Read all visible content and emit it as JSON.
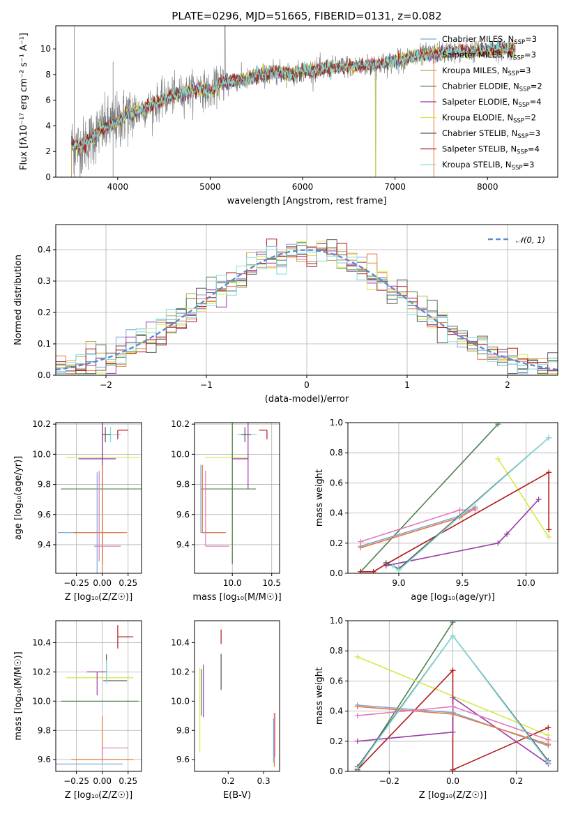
{
  "figure": {
    "title": "PLATE=0296, MJD=51665, FIBERID=0131, z=0.082"
  },
  "colors": {
    "Chabrier MILES": "#7aa6d8",
    "Salpeter MILES": "#e8783a",
    "Kroupa MILES": "#c8a050",
    "Chabrier ELODIE": "#4f7f4f",
    "Salpeter ELODIE": "#9a3aa8",
    "Kroupa ELODIE": "#d6e84a",
    "Chabrier STELIB": "#5a5a5a",
    "Salpeter STELIB": "#b01818",
    "Kroupa STELIB": "#82dede",
    "data": "#808080",
    "normal": "#5b8bd0",
    "pink": "#e07ab8"
  },
  "chart_data": [
    {
      "id": "spectrum",
      "type": "line",
      "xlabel": "wavelength [Angstrom, rest frame]",
      "ylabel": "Flux [fλ10⁻¹⁷ erg cm⁻² s⁻¹ A⁻¹]",
      "xlim": [
        3330,
        8760
      ],
      "ylim": [
        0,
        11.8
      ],
      "xticks": [
        4000,
        5000,
        6000,
        7000,
        8000
      ],
      "yticks": [
        0,
        2,
        4,
        6,
        8,
        10
      ],
      "grid": false,
      "legend_position": "top-right",
      "series": [
        {
          "name": "Chabrier MILES, N_SSP=3",
          "legend": "Chabrier MILES, N",
          "sub": "SSP",
          "sup": "=3"
        },
        {
          "name": "Salpeter MILES, N_SSP=3",
          "legend": "Salpeter MILES, N",
          "sub": "SSP",
          "sup": "=3"
        },
        {
          "name": "Kroupa MILES, N_SSP=3",
          "legend": "Kroupa MILES, N",
          "sub": "SSP",
          "sup": "=3"
        },
        {
          "name": "Chabrier ELODIE, N_SSP=2",
          "legend": "Chabrier ELODIE, N",
          "sub": "SSP",
          "sup": "=2"
        },
        {
          "name": "Salpeter ELODIE, N_SSP=4",
          "legend": "Salpeter ELODIE, N",
          "sub": "SSP",
          "sup": "=4"
        },
        {
          "name": "Kroupa ELODIE, N_SSP=2",
          "legend": "Kroupa ELODIE, N",
          "sub": "SSP",
          "sup": "=2"
        },
        {
          "name": "Chabrier STELIB, N_SSP=3",
          "legend": "Chabrier STELIB, N",
          "sub": "SSP",
          "sup": "=3"
        },
        {
          "name": "Salpeter STELIB, N_SSP=4",
          "legend": "Salpeter STELIB, N",
          "sub": "SSP",
          "sup": "=4"
        },
        {
          "name": "Kroupa STELIB, N_SSP=3",
          "legend": "Kroupa STELIB, N",
          "sub": "SSP",
          "sup": "=3"
        }
      ],
      "model_anchor_x": [
        3500,
        3600,
        3700,
        3800,
        3900,
        4000,
        4100,
        4200,
        4300,
        4400,
        4500,
        4600,
        4700,
        4800,
        4900,
        5000,
        5100,
        5200,
        5300,
        5400,
        5500,
        5600,
        5700,
        5800,
        5900,
        6000,
        6200,
        6400,
        6600,
        6800,
        7000,
        7200,
        7400,
        7600,
        7800,
        8000,
        8200,
        8300
      ],
      "model_anchor_y": [
        2.6,
        2.3,
        2.9,
        3.6,
        4.0,
        4.3,
        4.9,
        5.0,
        5.4,
        5.7,
        6.1,
        6.4,
        6.5,
        6.8,
        7.0,
        6.6,
        7.3,
        7.4,
        7.6,
        7.6,
        7.9,
        8.0,
        8.2,
        8.2,
        8.0,
        8.3,
        8.4,
        8.6,
        8.6,
        8.8,
        9.0,
        9.4,
        9.6,
        9.8,
        9.8,
        9.9,
        10.0,
        9.9
      ]
    },
    {
      "id": "residuals",
      "type": "step",
      "xlabel": "(data-model)/error",
      "ylabel": "Normed distribution",
      "xlim": [
        -2.5,
        2.5
      ],
      "ylim": [
        0,
        0.48
      ],
      "xticks": [
        -2,
        -1,
        0,
        1,
        2
      ],
      "xticklabels": [
        "−2",
        "−1",
        "0",
        "1",
        "2"
      ],
      "yticks": [
        0.0,
        0.1,
        0.2,
        0.3,
        0.4
      ],
      "yticklabels": [
        "0.0",
        "0.1",
        "0.2",
        "0.3",
        "0.4"
      ],
      "grid": true,
      "legend": "𝒩(0, 1)",
      "legend_position": "top-right",
      "bin_width": 0.1,
      "bin_start": -2.5
    },
    {
      "id": "age_vs_Z",
      "type": "errorbar",
      "xlabel": "Z [log₁₀(Z/Z☉)]",
      "ylabel": "age  [log₁₀(age/yr)]",
      "xlim": [
        -0.45,
        0.38
      ],
      "ylim": [
        9.21,
        10.21
      ],
      "xticks": [
        -0.25,
        0.0,
        0.25
      ],
      "xticklabels": [
        "−0.25",
        "0.00",
        "0.25"
      ],
      "yticks": [
        9.4,
        9.6,
        9.8,
        10.0,
        10.2
      ],
      "yticklabels": [
        "9.4",
        "9.6",
        "9.8",
        "10.0",
        "10.2"
      ],
      "grid": true,
      "points": [
        {
          "series": "Kroupa ELODIE",
          "x": 0.0,
          "xerr": [
            0.35,
            0.37
          ],
          "y": 9.98,
          "yerr": [
            0.7,
            0.3
          ]
        },
        {
          "series": "Chabrier ELODIE",
          "x": 0.0,
          "xerr": [
            0.4,
            0.38
          ],
          "y": 9.77,
          "yerr": [
            0.5,
            0.5
          ]
        },
        {
          "series": "Salpeter ELODIE",
          "x": 0.0,
          "xerr": [
            0.23,
            0.13
          ],
          "y": 9.97,
          "yerr": [
            0.2,
            0.25
          ]
        },
        {
          "series": "Kroupa STELIB",
          "x": 0.08,
          "xerr": [
            0.08,
            0.1
          ],
          "y": 10.13,
          "yerr": [
            0.05,
            0.05
          ]
        },
        {
          "series": "Chabrier STELIB",
          "x": 0.03,
          "xerr": [
            0.03,
            0.05
          ],
          "y": 10.13,
          "yerr": [
            0.05,
            0.05
          ]
        },
        {
          "series": "Salpeter STELIB",
          "x": 0.15,
          "xerr": [
            0.0,
            0.1
          ],
          "y": 10.16,
          "yerr": [
            0.06,
            0.0
          ]
        },
        {
          "series": "Chabrier MILES",
          "x": -0.05,
          "xerr": [
            0.38,
            0.25
          ],
          "y": 9.48,
          "yerr": [
            0.3,
            0.4
          ]
        },
        {
          "series": "Salpeter MILES",
          "x": 0.0,
          "xerr": [
            0.28,
            0.24
          ],
          "y": 9.48,
          "yerr": [
            0.3,
            0.45
          ]
        },
        {
          "series": "pink",
          "x": -0.03,
          "xerr": [
            0.05,
            0.21
          ],
          "y": 9.39,
          "yerr": [
            0.1,
            0.5
          ]
        }
      ]
    },
    {
      "id": "age_vs_mass",
      "type": "errorbar",
      "xlabel": "mass [log₁₀(M/M☉)]",
      "ylabel": "",
      "xlim": [
        9.52,
        10.6
      ],
      "ylim": [
        9.21,
        10.21
      ],
      "xticks": [
        10.0,
        10.5
      ],
      "xticklabels": [
        "10.0",
        "10.5"
      ],
      "yticks": [
        9.4,
        9.6,
        9.8,
        10.0,
        10.2
      ],
      "yticklabels": [
        "9.4",
        "9.6",
        "9.8",
        "10.0",
        "10.2"
      ],
      "grid": true,
      "points": [
        {
          "series": "Kroupa ELODIE",
          "x": 10.0,
          "xerr": [
            0.35,
            0.22
          ],
          "y": 9.98,
          "yerr": [
            0.7,
            0.3
          ]
        },
        {
          "series": "Chabrier ELODIE",
          "x": 10.0,
          "xerr": [
            0.4,
            0.3
          ],
          "y": 9.77,
          "yerr": [
            0.5,
            0.5
          ]
        },
        {
          "series": "Salpeter ELODIE",
          "x": 10.2,
          "xerr": [
            0.2,
            0.0
          ],
          "y": 9.97,
          "yerr": [
            0.2,
            0.25
          ]
        },
        {
          "series": "Kroupa STELIB",
          "x": 10.16,
          "xerr": [
            0.1,
            0.15
          ],
          "y": 10.13,
          "yerr": [
            0.05,
            0.05
          ]
        },
        {
          "series": "Chabrier STELIB",
          "x": 10.16,
          "xerr": [
            0.05,
            0.08
          ],
          "y": 10.13,
          "yerr": [
            0.05,
            0.05
          ]
        },
        {
          "series": "Salpeter STELIB",
          "x": 10.44,
          "xerr": [
            0.1,
            0.0
          ],
          "y": 10.16,
          "yerr": [
            0.06,
            0.0
          ]
        },
        {
          "series": "Chabrier MILES",
          "x": 9.6,
          "xerr": [
            0.0,
            0.3
          ],
          "y": 9.48,
          "yerr": [
            0.0,
            0.45
          ]
        },
        {
          "series": "Salpeter MILES",
          "x": 9.62,
          "xerr": [
            0.0,
            0.3
          ],
          "y": 9.48,
          "yerr": [
            0.0,
            0.45
          ]
        },
        {
          "series": "pink",
          "x": 9.66,
          "xerr": [
            0.0,
            0.3
          ],
          "y": 9.39,
          "yerr": [
            0.0,
            0.5
          ]
        }
      ]
    },
    {
      "id": "massweight_vs_age",
      "type": "line",
      "xlabel": "age  [log₁₀(age/yr)]",
      "ylabel": "mass weight",
      "xlim": [
        8.6,
        10.25
      ],
      "ylim": [
        0.0,
        1.0
      ],
      "xticks": [
        9.0,
        9.5,
        10.0
      ],
      "xticklabels": [
        "9.0",
        "9.5",
        "10.0"
      ],
      "yticks": [
        0.0,
        0.2,
        0.4,
        0.6,
        0.8,
        1.0
      ],
      "yticklabels": [
        "0.0",
        "0.2",
        "0.4",
        "0.6",
        "0.8",
        "1.0"
      ],
      "grid": true,
      "series": [
        {
          "series": "Chabrier ELODIE",
          "x": [
            8.7,
            9.78
          ],
          "y": [
            0.01,
            0.99
          ]
        },
        {
          "series": "Kroupa ELODIE",
          "x": [
            9.78,
            10.18
          ],
          "y": [
            0.76,
            0.24
          ]
        },
        {
          "series": "Salpeter STELIB",
          "x": [
            8.7,
            8.8,
            8.9,
            10.18,
            10.18
          ],
          "y": [
            0.01,
            0.01,
            0.06,
            0.67,
            0.29
          ]
        },
        {
          "series": "Salpeter ELODIE",
          "x": [
            8.9,
            9.78,
            9.85,
            10.1
          ],
          "y": [
            0.05,
            0.2,
            0.26,
            0.49
          ]
        },
        {
          "series": "Chabrier MILES",
          "x": [
            8.7,
            9.48,
            9.6
          ],
          "y": [
            0.18,
            0.38,
            0.44
          ]
        },
        {
          "series": "Salpeter MILES",
          "x": [
            8.7,
            9.48,
            9.6
          ],
          "y": [
            0.17,
            0.37,
            0.43
          ]
        },
        {
          "series": "pink",
          "x": [
            8.7,
            9.48,
            9.6
          ],
          "y": [
            0.21,
            0.42,
            0.42
          ]
        },
        {
          "series": "Chabrier STELIB",
          "x": [
            8.9,
            9.0,
            10.18
          ],
          "y": [
            0.07,
            0.03,
            0.9
          ]
        },
        {
          "series": "Kroupa STELIB",
          "x": [
            8.95,
            9.0,
            10.18
          ],
          "y": [
            0.05,
            0.02,
            0.9
          ]
        }
      ]
    },
    {
      "id": "mass_vs_Z",
      "type": "errorbar",
      "xlabel": "Z [log₁₀(Z/Z☉)]",
      "ylabel": "mass [log₁₀(M/M☉)]",
      "xlim": [
        -0.45,
        0.38
      ],
      "ylim": [
        9.52,
        10.55
      ],
      "xticks": [
        -0.25,
        0.0,
        0.25
      ],
      "xticklabels": [
        "−0.25",
        "0.00",
        "0.25"
      ],
      "yticks": [
        9.6,
        9.8,
        10.0,
        10.2,
        10.4
      ],
      "yticklabels": [
        "9.6",
        "9.8",
        "10.0",
        "10.2",
        "10.4"
      ],
      "grid": true,
      "points": [
        {
          "series": "Kroupa ELODIE",
          "x": 0.0,
          "xerr": [
            0.35,
            0.3
          ],
          "y": 10.16,
          "yerr": [
            0.0,
            0.0
          ]
        },
        {
          "series": "Chabrier ELODIE",
          "x": 0.0,
          "xerr": [
            0.4,
            0.35
          ],
          "y": 10.0,
          "yerr": [
            0.0,
            0.0
          ]
        },
        {
          "series": "Salpeter ELODIE",
          "x": -0.05,
          "xerr": [
            0.1,
            0.1
          ],
          "y": 10.2,
          "yerr": [
            0.16,
            0.0
          ]
        },
        {
          "series": "Chabrier STELIB",
          "x": 0.04,
          "xerr": [
            0.03,
            0.2
          ],
          "y": 10.14,
          "yerr": [
            0.0,
            0.18
          ]
        },
        {
          "series": "Kroupa STELIB",
          "x": 0.04,
          "xerr": [
            0.0,
            0.0
          ],
          "y": 10.2,
          "yerr": [
            0.08,
            0.08
          ]
        },
        {
          "series": "Salpeter STELIB",
          "x": 0.15,
          "xerr": [
            0.0,
            0.15
          ],
          "y": 10.44,
          "yerr": [
            0.08,
            0.08
          ]
        },
        {
          "series": "Chabrier MILES",
          "x": -0.1,
          "xerr": [
            0.35,
            0.3
          ],
          "y": 9.57,
          "yerr": [
            0.0,
            0.0
          ]
        },
        {
          "series": "Salpeter MILES",
          "x": 0.0,
          "xerr": [
            0.3,
            0.3
          ],
          "y": 9.6,
          "yerr": [
            0.0,
            0.3
          ]
        },
        {
          "series": "pink",
          "x": 0.0,
          "xerr": [
            0.0,
            0.25
          ],
          "y": 9.68,
          "yerr": [
            0.1,
            0.0
          ]
        }
      ]
    },
    {
      "id": "mass_vs_ebv",
      "type": "errorbar",
      "xlabel": "E(B-V)",
      "ylabel": "",
      "xlim": [
        0.105,
        0.345
      ],
      "ylim": [
        9.52,
        10.55
      ],
      "xticks": [
        0.2,
        0.3
      ],
      "xticklabels": [
        "0.2",
        "0.3"
      ],
      "yticks": [
        9.6,
        9.8,
        10.0,
        10.2,
        10.4
      ],
      "yticklabels": [
        "9.6",
        "9.8",
        "10.0",
        "10.2",
        "10.4"
      ],
      "grid": false,
      "points": [
        {
          "series": "Kroupa ELODIE",
          "x": 0.12,
          "y": 9.93,
          "yerr": [
            0.28,
            0.3
          ]
        },
        {
          "series": "Chabrier ELODIE",
          "x": 0.125,
          "y": 10.05,
          "yerr": [
            0.15,
            0.17
          ]
        },
        {
          "series": "Salpeter ELODIE",
          "x": 0.13,
          "y": 10.05,
          "yerr": [
            0.16,
            0.2
          ]
        },
        {
          "series": "Kroupa STELIB",
          "x": 0.18,
          "y": 10.2,
          "yerr": [
            0.13,
            0.13
          ]
        },
        {
          "series": "Chabrier STELIB",
          "x": 0.18,
          "y": 10.2,
          "yerr": [
            0.12,
            0.12
          ]
        },
        {
          "series": "Salpeter STELIB",
          "x": 0.18,
          "y": 10.44,
          "yerr": [
            0.05,
            0.05
          ]
        },
        {
          "series": "Salpeter MILES",
          "x": 0.33,
          "y": 9.72,
          "yerr": [
            0.17,
            0.2
          ]
        },
        {
          "series": "pink",
          "x": 0.332,
          "y": 9.74,
          "yerr": [
            0.12,
            0.18
          ]
        },
        {
          "series": "Chabrier MILES",
          "x": 0.328,
          "y": 9.73,
          "yerr": [
            0.15,
            0.15
          ]
        }
      ]
    },
    {
      "id": "massweight_vs_Z",
      "type": "line",
      "xlabel": "Z [log₁₀(Z/Z☉)]",
      "ylabel": "mass weight",
      "xlim": [
        -0.33,
        0.33
      ],
      "ylim": [
        0.0,
        1.0
      ],
      "xticks": [
        -0.2,
        0.0,
        0.2
      ],
      "xticklabels": [
        "−0.2",
        "0.0",
        "0.2"
      ],
      "yticks": [
        0.0,
        0.2,
        0.4,
        0.6,
        0.8,
        1.0
      ],
      "yticklabels": [
        "0.0",
        "0.2",
        "0.4",
        "0.6",
        "0.8",
        "1.0"
      ],
      "grid": true,
      "series": [
        {
          "series": "Chabrier ELODIE",
          "x": [
            -0.3,
            0.0
          ],
          "y": [
            0.01,
            0.99
          ]
        },
        {
          "series": "Kroupa ELODIE",
          "x": [
            -0.3,
            0.3
          ],
          "y": [
            0.76,
            0.24
          ]
        },
        {
          "series": "Salpeter STELIB",
          "x": [
            -0.3,
            0.0,
            0.0,
            0.3
          ],
          "y": [
            0.01,
            0.67,
            0.01,
            0.29
          ]
        },
        {
          "series": "Salpeter ELODIE",
          "x": [
            -0.3,
            0.0,
            0.0,
            0.3
          ],
          "y": [
            0.2,
            0.26,
            0.49,
            0.05
          ]
        },
        {
          "series": "Chabrier MILES",
          "x": [
            -0.3,
            0.0,
            0.3
          ],
          "y": [
            0.44,
            0.39,
            0.17
          ]
        },
        {
          "series": "Salpeter MILES",
          "x": [
            -0.3,
            0.0,
            0.3
          ],
          "y": [
            0.43,
            0.38,
            0.18
          ]
        },
        {
          "series": "pink",
          "x": [
            -0.3,
            0.0,
            0.3
          ],
          "y": [
            0.37,
            0.43,
            0.21
          ]
        },
        {
          "series": "Chabrier STELIB",
          "x": [
            -0.3,
            0.0,
            0.3
          ],
          "y": [
            0.03,
            0.9,
            0.07
          ]
        },
        {
          "series": "Kroupa STELIB",
          "x": [
            -0.3,
            0.0,
            0.3
          ],
          "y": [
            0.02,
            0.9,
            0.06
          ]
        }
      ]
    }
  ]
}
